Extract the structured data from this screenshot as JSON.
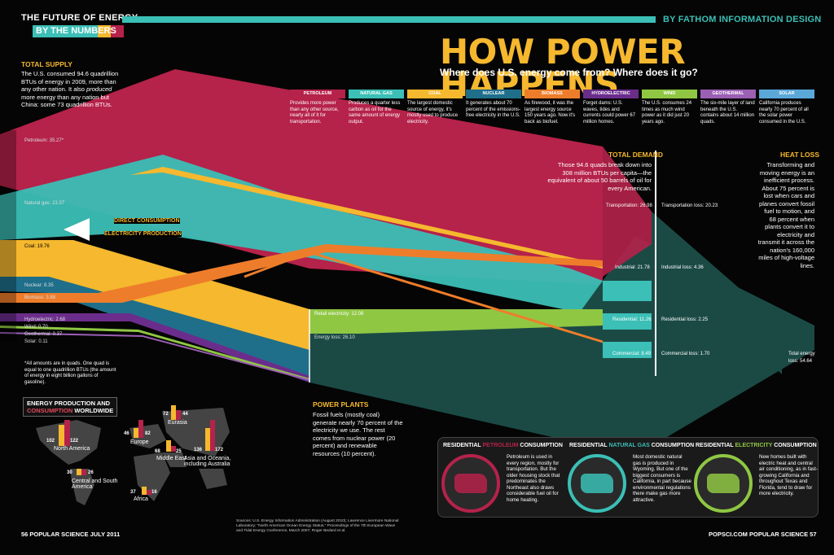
{
  "header": {
    "section_line1": "THE FUTURE OF ENERGY",
    "section_line2": "BY THE NUMBERS",
    "byline": "BY FATHOM INFORMATION DESIGN",
    "title": "HOW POWER HAPPENS",
    "subtitle": "Where does U.S. energy come from? Where does it go?"
  },
  "colors": {
    "petroleum": "#b5224a",
    "natural_gas": "#3bbfb6",
    "coal": "#f5b82e",
    "nuclear": "#1f6f8b",
    "biomass": "#ee7d2b",
    "hydroelectric": "#6b2d8c",
    "wind": "#8fc743",
    "geothermal": "#9b5fb4",
    "solar": "#5ba7d8",
    "loss": "#1b4a45"
  },
  "total_supply": {
    "heading": "TOTAL SUPPLY",
    "text_parts": [
      "The U.S. consumed 94.6 quadrillion BTUs of energy in 2009, more than any other nation. It also ",
      "produced",
      " more energy than any nation but China: some 73 quadrillion BTUs."
    ]
  },
  "sources": [
    {
      "key": "petroleum",
      "label": "PETROLEUM",
      "desc": "Provides more power than any other source, nearly all of it for transportation."
    },
    {
      "key": "natural_gas",
      "label": "NATURAL GAS",
      "desc": "Produces a quarter less carbon as oil for the same amount of energy output."
    },
    {
      "key": "coal",
      "label": "COAL",
      "desc": "The largest domestic source of energy, it's mostly used to produce electricity."
    },
    {
      "key": "nuclear",
      "label": "NUCLEAR",
      "desc": "It generates about 70 percent of the emissions-free electricity in the U.S."
    },
    {
      "key": "biomass",
      "label": "BIOMASS",
      "desc": "As firewood, it was the largest energy source 150 years ago. Now it's back as biofuel."
    },
    {
      "key": "hydroelectric",
      "label": "HYDROELECTRIC",
      "desc": "Forget dams: U.S. waves, tides and currents could power 67 million homes."
    },
    {
      "key": "wind",
      "label": "WIND",
      "desc": "The U.S. consumes 24 times as much wind power as it did just 20 years ago."
    },
    {
      "key": "geothermal",
      "label": "GEOTHERMAL",
      "desc": "The six-mile layer of land beneath the U.S. contains about 14 million quads."
    },
    {
      "key": "solar",
      "label": "SOLAR",
      "desc": "California produces nearly 70 percent of all the solar power consumed in the U.S."
    }
  ],
  "supply_labels": {
    "petroleum": "Petroleum: 35.27*",
    "natural_gas": "Natural gas: 23.37",
    "coal": "Coal: 19.76",
    "nuclear": "Nuclear: 8.35",
    "biomass": "Biomass: 3.88",
    "hydroelectric": "Hydroelectric: 2.68",
    "wind": "Wind: 0.70",
    "geothermal": "Geothermal: 0.37",
    "solar": "Solar: 0.11"
  },
  "footnote": "*All amounts are in quads. One quad is equal to one quadrillion BTUs (the amount of energy in eight billion gallons of gasoline).",
  "flow_labels": {
    "direct": "DIRECT CONSUMPTION",
    "electricity": "ELECTRICITY PRODUCTION"
  },
  "power_plants": {
    "heading": "POWER PLANTS",
    "text": "Fossil fuels (mostly coal) generate nearly 70 percent of the electricity we use. The rest comes from nuclear power (20 percent) and renewable resources (10 percent).",
    "retail": "Retail electricity: 12.08",
    "loss": "Energy loss: 26.10"
  },
  "total_demand": {
    "heading": "TOTAL DEMAND",
    "text": "Those 94.6 quads break down into 308 million BTUs per capita—the equivalent of about 50 barrels of oil for every American.",
    "transportation": "Transportation: 26.98",
    "industrial": "Industrial: 21.78",
    "residential": "Residential: 11.26",
    "commercial": "Commercial: 8.49"
  },
  "losses": {
    "transportation": "Transportation loss: 20.23",
    "industrial": "Industrial loss: 4.36",
    "residential": "Residential loss: 2.25",
    "commercial": "Commercial loss: 1.70",
    "total_line1": "Total energy",
    "total_line2": "loss: 54.64"
  },
  "heat_loss": {
    "heading": "HEAT LOSS",
    "text": "Transforming and moving energy is an inefficient process. About 75 percent is lost when cars and planes convert fossil fuel to motion, and 68 percent when plants convert it to electricity and transmit it across the nation's 160,000 miles of high-voltage lines."
  },
  "world": {
    "title_part1": "ENERGY PRODUCTION",
    "title_and": " AND",
    "title_part2": "CONSUMPTION",
    "title_part3": " WORLDWIDE",
    "regions": [
      {
        "name": "North America",
        "production": "102",
        "consumption": "122"
      },
      {
        "name": "Central and South America",
        "production": "30",
        "consumption": "26"
      },
      {
        "name": "Europe",
        "production": "46",
        "consumption": "82"
      },
      {
        "name": "Eurasia",
        "production": "72",
        "consumption": "44"
      },
      {
        "name": "Middle East",
        "production": "68",
        "consumption": "25"
      },
      {
        "name": "Africa",
        "production": "37",
        "consumption": "16"
      },
      {
        "name": "Asia and Oceania, including Australia",
        "production": "136",
        "consumption": "172"
      }
    ]
  },
  "residential": [
    {
      "title_a": "RESIDENTIAL ",
      "title_b": "PETROLEUM",
      "title_c": " CONSUMPTION",
      "color": "#b5224a",
      "text": "Petroleum is used in every region, mostly for transportation. But the older housing stock that predominates the Northeast also draws considerable fuel oil for home heating."
    },
    {
      "title_a": "RESIDENTIAL ",
      "title_b": "NATURAL GAS",
      "title_c": " CONSUMPTION",
      "color": "#3bbfb6",
      "text": "Most domestic natural gas is produced in Wyoming. But one of the biggest consumers is California, in part because environmental regulations there make gas more attractive."
    },
    {
      "title_a": "RESIDENTIAL ",
      "title_b": "ELECTRICITY",
      "title_c": " CONSUMPTION",
      "color": "#8fc743",
      "text": "New homes built with electric heat and central air conditioning, as in fast-growing California and throughout Texas and Florida, tend to draw for more electricity."
    }
  ],
  "sources_note": "Sources: U.S. Energy Information Administration (August 2010); Lawrence Livermore National Laboratory; \"North American Ocean Energy Status,\" Proceedings of the 7th European Wave and Tidal Energy Conference, March 2007; Roger Bedard et al.",
  "footer": {
    "left": "56  POPULAR SCIENCE  JULY 2011",
    "right": "POPSCI.COM  POPULAR SCIENCE  57"
  }
}
